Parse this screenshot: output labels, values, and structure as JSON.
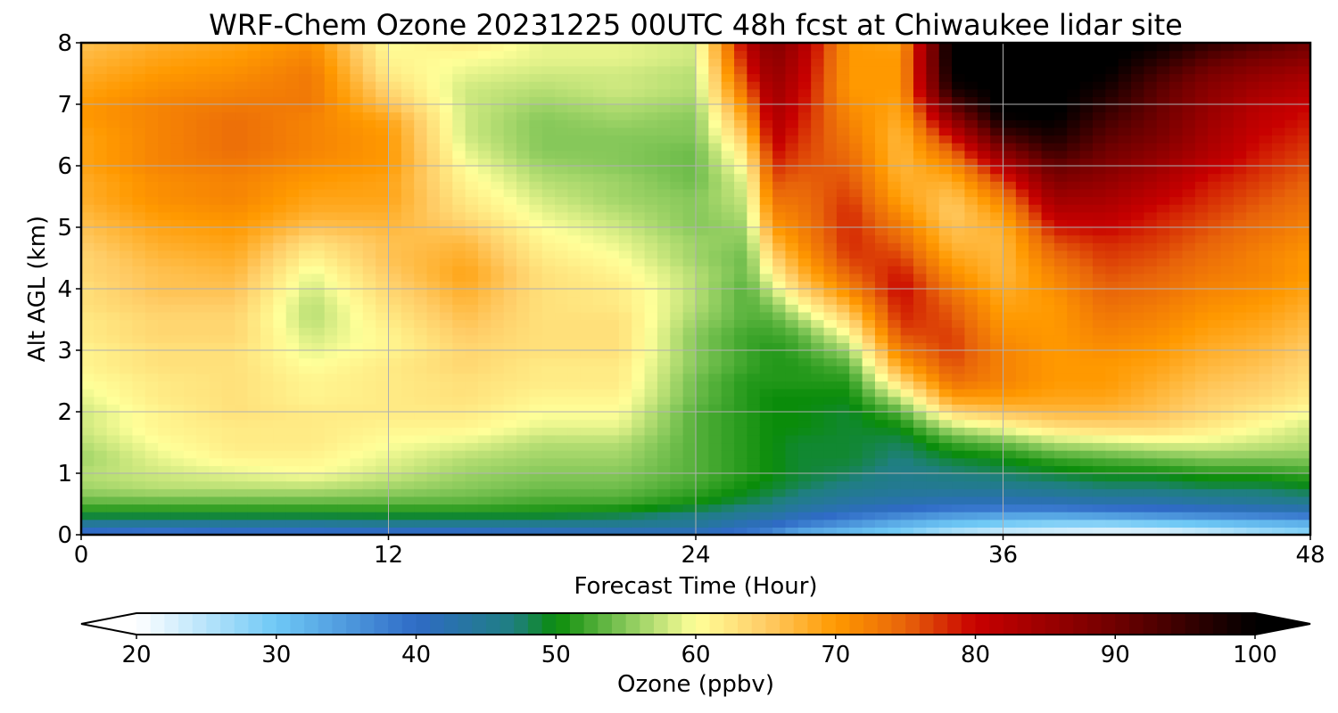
{
  "chart_data": {
    "type": "heatmap",
    "title": "WRF-Chem Ozone  20231225 00UTC 48h fcst at Chiwaukee lidar site",
    "xlabel": "Forecast Time (Hour)",
    "ylabel": "Alt AGL (km)",
    "xlim": [
      0,
      48
    ],
    "ylim": [
      0,
      8
    ],
    "xticks": [
      "0",
      "12",
      "24",
      "36",
      "48"
    ],
    "yticks": [
      "0",
      "1",
      "2",
      "3",
      "4",
      "5",
      "6",
      "7",
      "8"
    ],
    "grid": true,
    "colorbar": {
      "label": "Ozone  (ppbv)",
      "range": [
        20,
        100
      ],
      "ticks": [
        "20",
        "30",
        "40",
        "50",
        "60",
        "70",
        "80",
        "90",
        "100"
      ],
      "extend": "both",
      "colors": {
        "20": "#ffffff",
        "30": "#6ec8f5",
        "40": "#2f6bc6",
        "47": "#1f7f80",
        "50": "#0a8c0a",
        "55": "#86c85a",
        "60": "#ffff99",
        "65": "#ffcc66",
        "70": "#ff9900",
        "75": "#e8640a",
        "80": "#c80000",
        "90": "#700000",
        "100": "#000000"
      }
    },
    "z_heights_km": [
      0,
      0.2,
      0.35,
      0.5,
      0.75,
      1.0,
      1.25,
      1.5,
      1.75,
      2.0,
      2.25,
      2.5,
      2.75,
      3.0,
      3.25,
      3.5,
      3.75,
      4.0,
      4.25,
      4.5,
      4.75,
      5.0,
      5.25,
      5.5,
      5.75,
      6.0,
      6.25,
      6.5,
      6.75,
      7.0,
      7.25,
      7.5,
      7.75,
      8.0
    ],
    "x_hours": [
      0,
      3,
      6,
      9,
      12,
      15,
      18,
      21,
      24,
      26,
      27,
      28,
      30,
      32,
      34,
      36,
      38,
      40,
      42,
      44,
      46,
      48
    ],
    "ozone_ppbv_by_hour": [
      [
        38,
        45,
        50,
        53,
        56,
        57,
        56,
        57,
        58,
        58,
        59,
        60,
        61,
        61,
        62,
        62,
        63,
        63,
        64,
        64,
        65,
        66,
        67,
        68,
        68,
        69,
        69,
        69,
        70,
        70,
        69,
        68,
        67,
        66
      ],
      [
        37,
        45,
        50,
        53,
        57,
        58,
        59,
        60,
        61,
        61,
        62,
        62,
        63,
        63,
        64,
        64,
        65,
        66,
        66,
        67,
        68,
        69,
        70,
        71,
        71,
        72,
        72,
        72,
        72,
        72,
        71,
        70,
        69,
        68
      ],
      [
        38,
        45,
        50,
        53,
        57,
        59,
        61,
        62,
        62,
        63,
        63,
        63,
        63,
        63,
        64,
        64,
        65,
        66,
        67,
        68,
        69,
        70,
        71,
        72,
        72,
        73,
        74,
        74,
        74,
        73,
        72,
        71,
        70,
        69
      ],
      [
        38,
        45,
        50,
        53,
        57,
        60,
        61,
        62,
        62,
        62,
        61,
        61,
        60,
        59,
        58,
        57,
        57,
        58,
        59,
        61,
        63,
        66,
        68,
        69,
        70,
        71,
        72,
        72,
        72,
        73,
        73,
        73,
        72,
        71
      ],
      [
        38,
        46,
        50,
        53,
        56,
        58,
        59,
        60,
        61,
        62,
        62,
        62,
        62,
        61,
        61,
        62,
        63,
        64,
        65,
        66,
        66,
        67,
        68,
        69,
        69,
        70,
        70,
        70,
        69,
        66,
        64,
        62,
        61,
        60
      ],
      [
        38,
        46,
        50,
        53,
        55,
        56,
        57,
        59,
        61,
        62,
        63,
        63,
        64,
        64,
        65,
        66,
        67,
        68,
        69,
        68,
        67,
        65,
        63,
        62,
        61,
        60,
        59,
        58,
        58,
        58,
        58,
        59,
        60,
        62
      ],
      [
        39,
        46,
        50,
        52,
        54,
        55,
        56,
        57,
        59,
        60,
        61,
        62,
        62,
        63,
        63,
        63,
        63,
        63,
        63,
        62,
        61,
        60,
        59,
        58,
        57,
        56,
        55,
        55,
        55,
        56,
        57,
        58,
        59,
        59
      ],
      [
        40,
        46,
        49,
        52,
        54,
        55,
        56,
        57,
        59,
        60,
        61,
        62,
        62,
        63,
        63,
        63,
        62,
        62,
        61,
        60,
        59,
        58,
        57,
        56,
        56,
        55,
        55,
        55,
        56,
        57,
        58,
        58,
        59,
        59
      ],
      [
        40,
        45,
        47,
        50,
        52,
        53,
        53,
        53,
        53,
        53,
        54,
        54,
        55,
        55,
        55,
        56,
        57,
        57,
        57,
        56,
        56,
        55,
        55,
        55,
        54,
        54,
        54,
        55,
        55,
        56,
        57,
        57,
        58,
        58
      ],
      [
        38,
        42,
        45,
        48,
        50,
        51,
        51,
        51,
        51,
        51,
        51,
        51,
        52,
        52,
        52,
        53,
        53,
        53,
        54,
        54,
        55,
        56,
        57,
        58,
        59,
        61,
        63,
        66,
        69,
        72,
        75,
        78,
        80,
        82
      ],
      [
        36,
        41,
        44,
        47,
        49,
        50,
        50,
        50,
        50,
        50,
        50,
        51,
        51,
        51,
        52,
        53,
        55,
        58,
        61,
        64,
        67,
        70,
        72,
        74,
        76,
        78,
        80,
        82,
        83,
        84,
        85,
        86,
        87,
        88
      ],
      [
        32,
        39,
        42,
        45,
        48,
        49,
        49,
        49,
        50,
        50,
        50,
        51,
        51,
        52,
        53,
        56,
        60,
        64,
        67,
        69,
        71,
        72,
        73,
        74,
        75,
        76,
        77,
        78,
        79,
        80,
        81,
        82,
        83,
        84
      ],
      [
        30,
        36,
        40,
        43,
        46,
        48,
        49,
        49,
        49,
        49,
        50,
        51,
        53,
        56,
        60,
        64,
        68,
        72,
        75,
        77,
        78,
        78,
        78,
        77,
        76,
        75,
        74,
        73,
        72,
        71,
        70,
        70,
        70,
        70
      ],
      [
        28,
        33,
        38,
        42,
        45,
        46,
        47,
        48,
        50,
        53,
        58,
        64,
        69,
        73,
        76,
        78,
        79,
        80,
        79,
        77,
        75,
        73,
        71,
        69,
        68,
        67,
        67,
        67,
        68,
        69,
        70,
        70,
        70,
        69
      ],
      [
        24,
        31,
        36,
        41,
        45,
        47,
        49,
        52,
        57,
        64,
        70,
        74,
        76,
        77,
        77,
        76,
        75,
        73,
        71,
        69,
        67,
        66,
        65,
        66,
        68,
        71,
        75,
        80,
        86,
        92,
        98,
        100,
        101,
        101
      ],
      [
        22,
        30,
        35,
        41,
        45,
        48,
        50,
        54,
        60,
        66,
        70,
        72,
        72,
        72,
        71,
        70,
        69,
        68,
        67,
        67,
        67,
        68,
        70,
        73,
        77,
        82,
        88,
        94,
        99,
        101,
        101,
        101,
        101,
        101
      ],
      [
        21,
        29,
        35,
        41,
        46,
        49,
        52,
        57,
        63,
        67,
        69,
        70,
        70,
        70,
        70,
        70,
        70,
        71,
        72,
        74,
        76,
        79,
        82,
        85,
        88,
        91,
        95,
        98,
        100,
        101,
        101,
        101,
        101,
        101
      ],
      [
        20,
        29,
        36,
        42,
        47,
        50,
        53,
        58,
        64,
        67,
        69,
        70,
        70,
        71,
        72,
        73,
        74,
        75,
        76,
        77,
        78,
        80,
        82,
        84,
        86,
        88,
        90,
        92,
        94,
        96,
        98,
        100,
        101,
        101
      ],
      [
        20,
        30,
        37,
        42,
        47,
        50,
        54,
        59,
        64,
        66,
        67,
        68,
        69,
        70,
        71,
        72,
        73,
        74,
        75,
        76,
        77,
        78,
        79,
        81,
        83,
        85,
        87,
        89,
        90,
        91,
        92,
        94,
        97,
        100
      ],
      [
        22,
        31,
        38,
        43,
        48,
        51,
        55,
        59,
        62,
        64,
        65,
        66,
        67,
        68,
        69,
        70,
        71,
        72,
        73,
        74,
        75,
        76,
        77,
        78,
        79,
        81,
        83,
        84,
        85,
        86,
        87,
        89,
        92,
        96
      ],
      [
        25,
        32,
        39,
        44,
        48,
        51,
        55,
        58,
        60,
        62,
        64,
        65,
        66,
        67,
        68,
        69,
        70,
        71,
        72,
        72,
        73,
        74,
        75,
        76,
        77,
        78,
        79,
        80,
        81,
        82,
        84,
        86,
        89,
        93
      ],
      [
        27,
        33,
        40,
        45,
        49,
        52,
        55,
        57,
        58,
        60,
        62,
        63,
        64,
        65,
        66,
        67,
        68,
        69,
        70,
        70,
        71,
        72,
        73,
        74,
        75,
        76,
        77,
        78,
        79,
        80,
        82,
        84,
        87,
        90
      ]
    ]
  }
}
